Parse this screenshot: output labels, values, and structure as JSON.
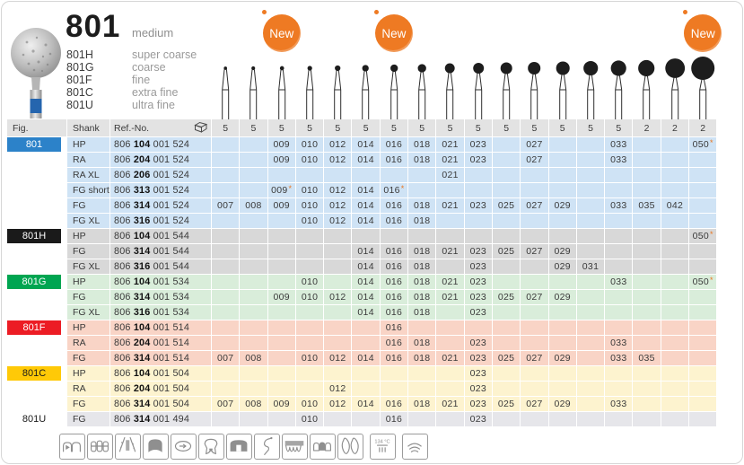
{
  "product": {
    "name": "801",
    "grit": "medium",
    "variants": [
      {
        "code": "801H",
        "grit": "super coarse"
      },
      {
        "code": "801G",
        "grit": "coarse"
      },
      {
        "code": "801F",
        "grit": "fine"
      },
      {
        "code": "801C",
        "grit": "extra fine"
      },
      {
        "code": "801U",
        "grit": "ultra fine"
      }
    ]
  },
  "new_badges": [
    {
      "label": "New",
      "column": "009"
    },
    {
      "label": "New",
      "column": "016"
    },
    {
      "label": "New",
      "column": "050"
    }
  ],
  "table": {
    "fig_header": "Fig.",
    "shank_header": "Shank",
    "ref_header": "Ref.-No.",
    "size_columns": [
      "007",
      "008",
      "009",
      "010",
      "012",
      "014",
      "016",
      "018",
      "021",
      "023",
      "025",
      "027",
      "029",
      "031",
      "033",
      "035",
      "042",
      "050"
    ],
    "pack_quantities": [
      "5",
      "5",
      "5",
      "5",
      "5",
      "5",
      "5",
      "5",
      "5",
      "5",
      "5",
      "5",
      "5",
      "5",
      "5",
      "2",
      "2",
      "2"
    ],
    "groups": [
      {
        "fig": "801",
        "badge_bg": "#2c82c9",
        "badge_fg": "#ffffff",
        "row_bg": "#cfe3f5",
        "rows": [
          {
            "shank": "HP",
            "ref_prefix": "806",
            "ref_bold": "104",
            "ref_suffix": "001 524",
            "sizes": [
              "009",
              "010",
              "012",
              "014",
              "016",
              "018",
              "021",
              "023",
              "027",
              "033",
              "050*"
            ]
          },
          {
            "shank": "RA",
            "ref_prefix": "806",
            "ref_bold": "204",
            "ref_suffix": "001 524",
            "sizes": [
              "009",
              "010",
              "012",
              "014",
              "016",
              "018",
              "021",
              "023",
              "027",
              "033"
            ]
          },
          {
            "shank": "RA XL",
            "ref_prefix": "806",
            "ref_bold": "206",
            "ref_suffix": "001 524",
            "sizes": [
              "021"
            ]
          },
          {
            "shank": "FG short",
            "ref_prefix": "806",
            "ref_bold": "313",
            "ref_suffix": "001 524",
            "sizes": [
              "009*",
              "010",
              "012",
              "014",
              "016*"
            ]
          },
          {
            "shank": "FG",
            "ref_prefix": "806",
            "ref_bold": "314",
            "ref_suffix": "001 524",
            "sizes": [
              "007",
              "008",
              "009",
              "010",
              "012",
              "014",
              "016",
              "018",
              "021",
              "023",
              "025",
              "027",
              "029",
              "033",
              "035",
              "042"
            ]
          },
          {
            "shank": "FG XL",
            "ref_prefix": "806",
            "ref_bold": "316",
            "ref_suffix": "001 524",
            "sizes": [
              "010",
              "012",
              "014",
              "016",
              "018"
            ]
          }
        ]
      },
      {
        "fig": "801H",
        "badge_bg": "#1a1a1a",
        "badge_fg": "#ffffff",
        "row_bg": "#d8d8d8",
        "rows": [
          {
            "shank": "HP",
            "ref_prefix": "806",
            "ref_bold": "104",
            "ref_suffix": "001 544",
            "sizes": [
              "050*"
            ]
          },
          {
            "shank": "FG",
            "ref_prefix": "806",
            "ref_bold": "314",
            "ref_suffix": "001 544",
            "sizes": [
              "014",
              "016",
              "018",
              "021",
              "023",
              "025",
              "027",
              "029"
            ]
          },
          {
            "shank": "FG XL",
            "ref_prefix": "806",
            "ref_bold": "316",
            "ref_suffix": "001 544",
            "sizes": [
              "014",
              "016",
              "018",
              "023",
              "029",
              "031"
            ]
          }
        ]
      },
      {
        "fig": "801G",
        "badge_bg": "#00a551",
        "badge_fg": "#ffffff",
        "row_bg": "#d9edda",
        "rows": [
          {
            "shank": "HP",
            "ref_prefix": "806",
            "ref_bold": "104",
            "ref_suffix": "001 534",
            "sizes": [
              "010",
              "014",
              "016",
              "018",
              "021",
              "023",
              "033",
              "050*"
            ]
          },
          {
            "shank": "FG",
            "ref_prefix": "806",
            "ref_bold": "314",
            "ref_suffix": "001 534",
            "sizes": [
              "009",
              "010",
              "012",
              "014",
              "016",
              "018",
              "021",
              "023",
              "025",
              "027",
              "029"
            ]
          },
          {
            "shank": "FG XL",
            "ref_prefix": "806",
            "ref_bold": "316",
            "ref_suffix": "001 534",
            "sizes": [
              "014",
              "016",
              "018",
              "023"
            ]
          }
        ]
      },
      {
        "fig": "801F",
        "badge_bg": "#ec1c24",
        "badge_fg": "#ffffff",
        "row_bg": "#f9d4c6",
        "rows": [
          {
            "shank": "HP",
            "ref_prefix": "806",
            "ref_bold": "104",
            "ref_suffix": "001 514",
            "sizes": [
              "016"
            ]
          },
          {
            "shank": "RA",
            "ref_prefix": "806",
            "ref_bold": "204",
            "ref_suffix": "001 514",
            "sizes": [
              "016",
              "018",
              "023",
              "033"
            ]
          },
          {
            "shank": "FG",
            "ref_prefix": "806",
            "ref_bold": "314",
            "ref_suffix": "001 514",
            "sizes": [
              "007",
              "008",
              "010",
              "012",
              "014",
              "016",
              "018",
              "021",
              "023",
              "025",
              "027",
              "029",
              "033",
              "035"
            ]
          }
        ]
      },
      {
        "fig": "801C",
        "badge_bg": "#ffc907",
        "badge_fg": "#1a1a1a",
        "row_bg": "#fdf3cf",
        "rows": [
          {
            "shank": "HP",
            "ref_prefix": "806",
            "ref_bold": "104",
            "ref_suffix": "001 504",
            "sizes": [
              "023"
            ]
          },
          {
            "shank": "RA",
            "ref_prefix": "806",
            "ref_bold": "204",
            "ref_suffix": "001 504",
            "sizes": [
              "012",
              "023"
            ]
          },
          {
            "shank": "FG",
            "ref_prefix": "806",
            "ref_bold": "314",
            "ref_suffix": "001 504",
            "sizes": [
              "007",
              "008",
              "009",
              "010",
              "012",
              "014",
              "016",
              "018",
              "021",
              "023",
              "025",
              "027",
              "029",
              "033"
            ]
          }
        ]
      },
      {
        "fig": "801U",
        "badge_bg": "#ffffff",
        "badge_fg": "#1a1a1a",
        "row_bg": "#e6e6ea",
        "rows": [
          {
            "shank": "FG",
            "ref_prefix": "806",
            "ref_bold": "314",
            "ref_suffix": "001 494",
            "sizes": [
              "010",
              "016",
              "023"
            ]
          }
        ]
      }
    ]
  },
  "footer_icons": [
    {
      "name": "tooth-contact-icon"
    },
    {
      "name": "anterior-teeth-icon"
    },
    {
      "name": "root-canal-icon"
    },
    {
      "name": "crown-prep-icon"
    },
    {
      "name": "rotary-motion-icon"
    },
    {
      "name": "molar-icon"
    },
    {
      "name": "inlay-prep-icon"
    },
    {
      "name": "scaler-instrument-icon"
    },
    {
      "name": "bridge-icon"
    },
    {
      "name": "pontic-icon"
    },
    {
      "name": "veneer-crowns-icon"
    },
    {
      "name": "sterilizable-134c-icon",
      "label": "134 °C"
    },
    {
      "name": "thermal-disinfection-icon"
    }
  ],
  "colors": {
    "new_badge": "#ee7a23",
    "star": "#e87722",
    "header_bg": "#e3e3e3"
  }
}
